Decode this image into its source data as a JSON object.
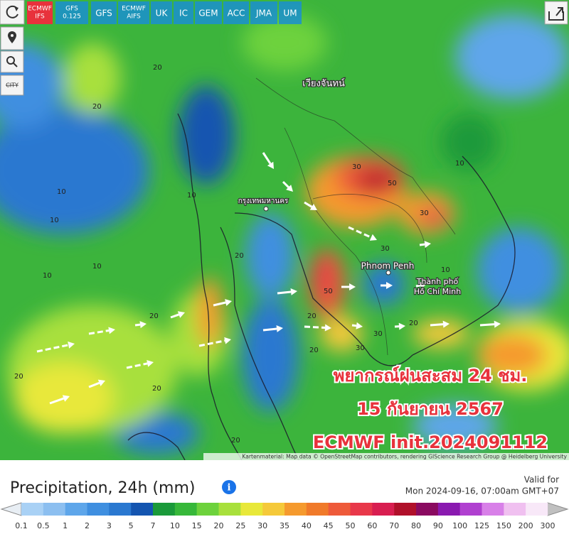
{
  "toolbar": {
    "active": 0,
    "models": [
      {
        "lines": [
          "ECMWF",
          "IFS"
        ]
      },
      {
        "lines": [
          "GFS",
          "0.125"
        ]
      },
      {
        "lines": [
          "GFS"
        ]
      },
      {
        "lines": [
          "ECMWF",
          "AIFS"
        ]
      },
      {
        "lines": [
          "UK"
        ]
      },
      {
        "lines": [
          "IC"
        ]
      },
      {
        "lines": [
          "GEM"
        ]
      },
      {
        "lines": [
          "ACC"
        ]
      },
      {
        "lines": [
          "JMA"
        ]
      },
      {
        "lines": [
          "UM"
        ]
      }
    ],
    "city_button": "CITY"
  },
  "map": {
    "places": [
      "เวียงจันทน์",
      "กรุงเทพมหานคร",
      "Phnom Penh",
      "Thành phố",
      "Hồ Chí Minh"
    ],
    "contour_labels": [
      "20",
      "20",
      "10",
      "10",
      "10",
      "20",
      "10",
      "20",
      "30",
      "50",
      "30",
      "30",
      "10",
      "50",
      "20",
      "20",
      "30",
      "20",
      "20",
      "20",
      "10",
      "20",
      "30",
      "10"
    ],
    "overlay": [
      "พยากรณ์ฝนสะสม 24 ชม.",
      "15 กันยายน 2567",
      "ECMWF init.2024091112"
    ],
    "attribution": "Kartenmaterial: Map data © OpenStreetMap contributors, rendering GIScience Research Group @ Heidelberg University"
  },
  "legend": {
    "title": "Precipitation, 24h (mm)",
    "valid_label": "Valid for",
    "valid_time": "Mon 2024-09-16, 07:00am GMT+07",
    "ticks": [
      "0.1",
      "0.5",
      "1",
      "2",
      "3",
      "5",
      "7",
      "10",
      "15",
      "20",
      "25",
      "30",
      "35",
      "40",
      "45",
      "50",
      "60",
      "70",
      "80",
      "90",
      "100",
      "125",
      "150",
      "200",
      "300"
    ],
    "colors": [
      "#a9d1f5",
      "#8cbff0",
      "#5ea6ea",
      "#3f8fe0",
      "#2a78d0",
      "#1455b0",
      "#1a9a3a",
      "#37b83a",
      "#6dd23c",
      "#a8e03c",
      "#e8e83a",
      "#f5c93a",
      "#f59a2e",
      "#f07a2a",
      "#ee5a3a",
      "#e8384a",
      "#d81e50",
      "#b0102a",
      "#8a0a60",
      "#8a1ab0",
      "#b040d0",
      "#d880e8",
      "#f0c0f0",
      "#f8e8f8"
    ]
  }
}
